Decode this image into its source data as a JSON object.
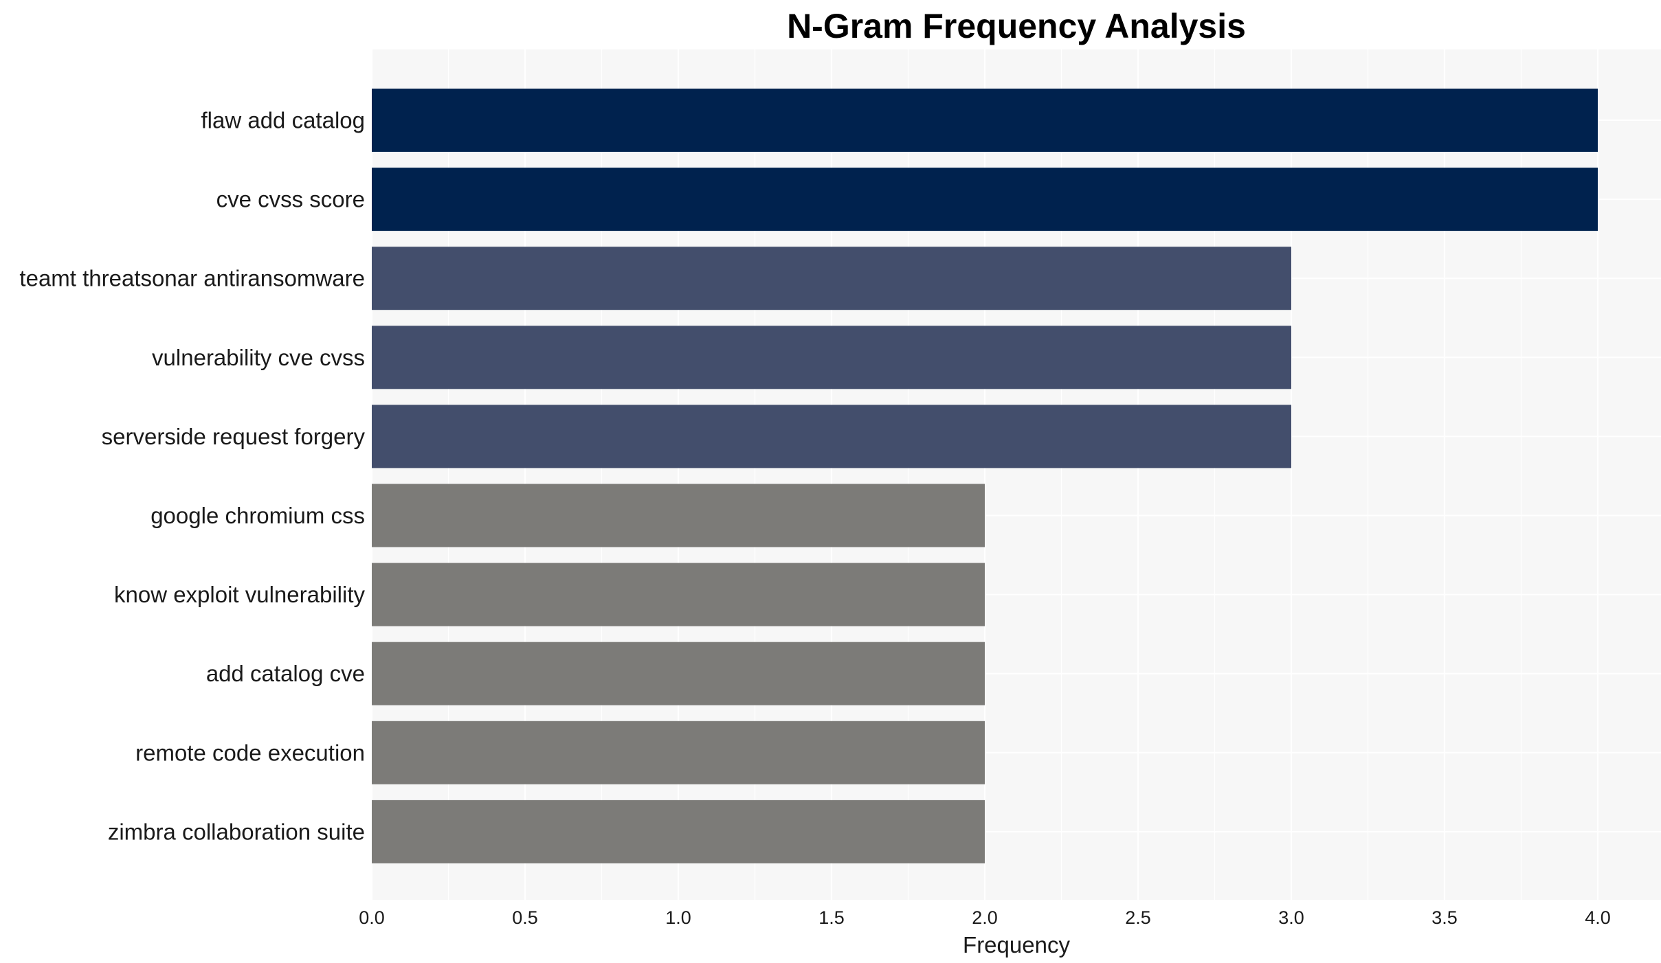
{
  "chart_data": {
    "type": "bar",
    "orientation": "horizontal",
    "title": "N-Gram Frequency Analysis",
    "xlabel": "Frequency",
    "ylabel": "",
    "xlim": [
      0,
      4.2
    ],
    "x_ticks": [
      "0.0",
      "0.5",
      "1.0",
      "1.5",
      "2.0",
      "2.5",
      "3.0",
      "3.5",
      "4.0"
    ],
    "grid": true,
    "categories": [
      "flaw add catalog",
      "cve cvss score",
      "teamt threatsonar antiransomware",
      "vulnerability cve cvss",
      "serverside request forgery",
      "google chromium css",
      "know exploit vulnerability",
      "add catalog cve",
      "remote code execution",
      "zimbra collaboration suite"
    ],
    "values": [
      4,
      4,
      3,
      3,
      3,
      2,
      2,
      2,
      2,
      2
    ],
    "colors": {
      "4": "#00224e",
      "3": "#434e6c",
      "2": "#7c7b78"
    },
    "background": "#f7f7f7",
    "gridline_color": "#ffffff"
  }
}
